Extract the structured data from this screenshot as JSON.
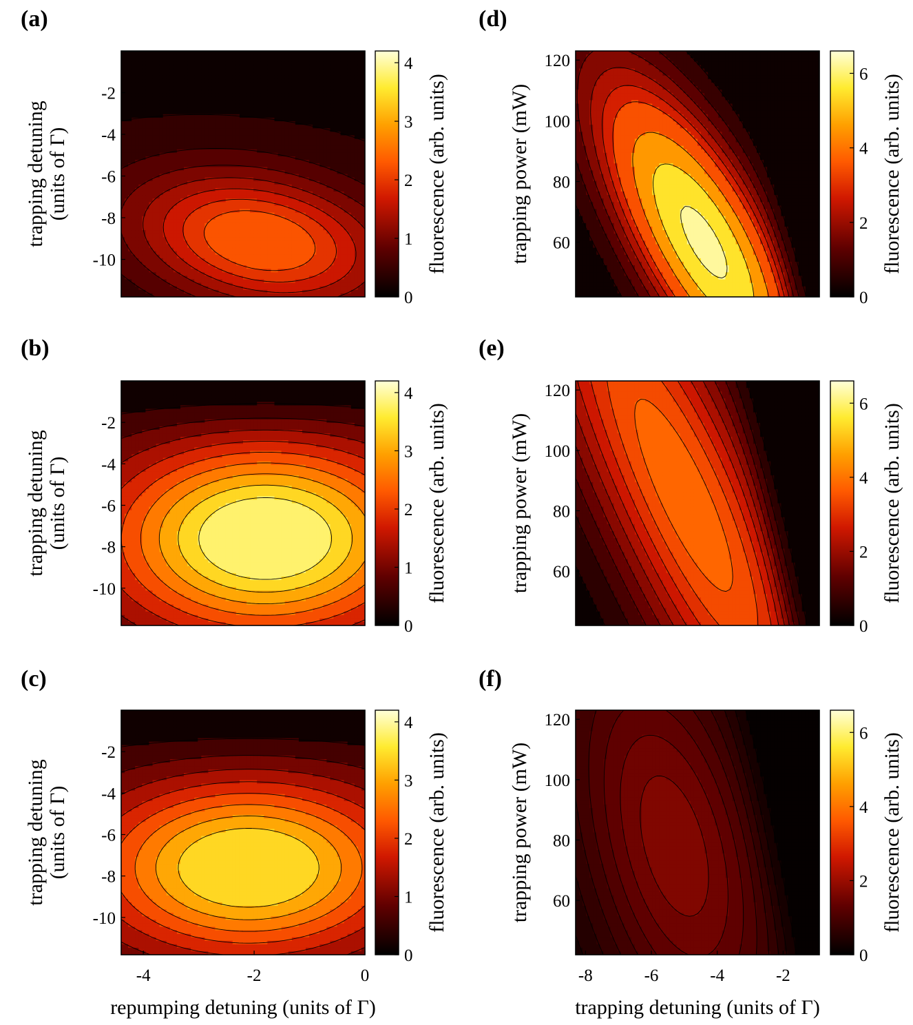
{
  "chart_data": [
    {
      "id": "a",
      "panel_label": "(a)",
      "type": "contour",
      "xlabel": "",
      "ylabel_lines": [
        "trapping detuning",
        "(units of Γ)"
      ],
      "xlim": [
        -4.4,
        0
      ],
      "ylim": [
        -11.8,
        0
      ],
      "xticks": [],
      "yticks": [
        {
          "v": -2,
          "t": "-2"
        },
        {
          "v": -4,
          "t": "-4"
        },
        {
          "v": -6,
          "t": "-6"
        },
        {
          "v": -8,
          "t": "-8"
        },
        {
          "v": -10,
          "t": "-10"
        }
      ],
      "clim": [
        0,
        4.2
      ],
      "levels": [
        0.3,
        0.6,
        0.9,
        1.2,
        1.5,
        1.8,
        2.1
      ],
      "peak": {
        "x": -1.9,
        "y": -9.1,
        "amp": 2.25,
        "sx": 1.55,
        "sy": 2.3,
        "tilt": 0.18
      },
      "base": 0.25,
      "colorbar": {
        "label": "fluorescence (arb. units)",
        "ticks": [
          {
            "v": 0,
            "t": "0"
          },
          {
            "v": 1,
            "t": "1"
          },
          {
            "v": 2,
            "t": "2"
          },
          {
            "v": 3,
            "t": "3"
          },
          {
            "v": 4,
            "t": "4"
          }
        ]
      }
    },
    {
      "id": "b",
      "panel_label": "(b)",
      "type": "contour",
      "xlabel": "",
      "ylabel_lines": [
        "trapping detuning",
        "(units of Γ)"
      ],
      "xlim": [
        -4.4,
        0
      ],
      "ylim": [
        -11.8,
        0
      ],
      "xticks": [],
      "yticks": [
        {
          "v": -2,
          "t": "-2"
        },
        {
          "v": -4,
          "t": "-4"
        },
        {
          "v": -6,
          "t": "-6"
        },
        {
          "v": -8,
          "t": "-8"
        },
        {
          "v": -10,
          "t": "-10"
        }
      ],
      "clim": [
        0,
        4.2
      ],
      "levels": [
        0.4,
        0.8,
        1.2,
        1.6,
        2.0,
        2.4,
        2.8,
        3.2,
        3.6
      ],
      "peak": {
        "x": -1.8,
        "y": -7.6,
        "amp": 3.95,
        "sx": 2.0,
        "sy": 3.3,
        "tilt": 0.0
      },
      "base": 0.3,
      "colorbar": {
        "label": "fluorescence (arb. units)",
        "ticks": [
          {
            "v": 0,
            "t": "0"
          },
          {
            "v": 1,
            "t": "1"
          },
          {
            "v": 2,
            "t": "2"
          },
          {
            "v": 3,
            "t": "3"
          },
          {
            "v": 4,
            "t": "4"
          }
        ]
      }
    },
    {
      "id": "c",
      "panel_label": "(c)",
      "type": "contour",
      "xlabel": "repumping detuning (units of Γ)",
      "ylabel_lines": [
        "trapping detuning",
        "(units of Γ)"
      ],
      "xlim": [
        -4.4,
        0
      ],
      "ylim": [
        -11.8,
        0
      ],
      "xticks": [
        {
          "v": -4,
          "t": "-4"
        },
        {
          "v": -2,
          "t": "-2"
        },
        {
          "v": 0,
          "t": "0"
        }
      ],
      "yticks": [
        {
          "v": -2,
          "t": "-2"
        },
        {
          "v": -4,
          "t": "-4"
        },
        {
          "v": -6,
          "t": "-6"
        },
        {
          "v": -8,
          "t": "-8"
        },
        {
          "v": -10,
          "t": "-10"
        }
      ],
      "clim": [
        0,
        4.2
      ],
      "levels": [
        0.4,
        0.8,
        1.2,
        1.6,
        2.0,
        2.4,
        2.8,
        3.2
      ],
      "peak": {
        "x": -2.1,
        "y": -7.6,
        "amp": 3.55,
        "sx": 2.0,
        "sy": 3.0,
        "tilt": 0.0
      },
      "base": 0.3,
      "colorbar": {
        "label": "fluorescence (arb. units)",
        "ticks": [
          {
            "v": 0,
            "t": "0"
          },
          {
            "v": 1,
            "t": "1"
          },
          {
            "v": 2,
            "t": "2"
          },
          {
            "v": 3,
            "t": "3"
          },
          {
            "v": 4,
            "t": "4"
          }
        ]
      }
    },
    {
      "id": "d",
      "panel_label": "(d)",
      "type": "contour",
      "xlabel": "",
      "ylabel_lines": [
        "trapping power (mW)"
      ],
      "xlim": [
        -8.3,
        -0.9
      ],
      "ylim": [
        42,
        123
      ],
      "xticks": [],
      "yticks": [
        {
          "v": 60,
          "t": "60"
        },
        {
          "v": 80,
          "t": "80"
        },
        {
          "v": 100,
          "t": "100"
        },
        {
          "v": 120,
          "t": "120"
        }
      ],
      "clim": [
        0,
        6.6
      ],
      "levels": [
        0.5,
        1.0,
        1.5,
        2.0,
        2.5,
        3.0,
        4.0,
        5.0,
        6.0
      ],
      "peak": {
        "x": -4.4,
        "y": 60,
        "amp": 6.3,
        "sx": 1.5,
        "sy": 38,
        "tilt": 0.045
      },
      "edge": -2.3,
      "base": 0.0,
      "colorbar": {
        "label": "fluorescence (arb. units)",
        "ticks": [
          {
            "v": 0,
            "t": "0"
          },
          {
            "v": 2,
            "t": "2"
          },
          {
            "v": 4,
            "t": "4"
          },
          {
            "v": 6,
            "t": "6"
          }
        ]
      }
    },
    {
      "id": "e",
      "panel_label": "(e)",
      "type": "contour",
      "xlabel": "",
      "ylabel_lines": [
        "trapping power (mW)"
      ],
      "xlim": [
        -8.3,
        -0.9
      ],
      "ylim": [
        42,
        123
      ],
      "xticks": [],
      "yticks": [
        {
          "v": 60,
          "t": "60"
        },
        {
          "v": 80,
          "t": "80"
        },
        {
          "v": 100,
          "t": "100"
        },
        {
          "v": 120,
          "t": "120"
        }
      ],
      "clim": [
        0,
        6.6
      ],
      "levels": [
        0.4,
        0.8,
        1.2,
        1.6,
        2.0,
        2.4,
        2.8,
        3.2,
        3.6
      ],
      "peak": {
        "x": -5.0,
        "y": 85,
        "amp": 3.9,
        "sx": 2.0,
        "sy": 80,
        "tilt": 0.04
      },
      "edge": -2.4,
      "base": 0.0,
      "colorbar": {
        "label": "fluorescence (arb. units)",
        "ticks": [
          {
            "v": 0,
            "t": "0"
          },
          {
            "v": 2,
            "t": "2"
          },
          {
            "v": 4,
            "t": "4"
          },
          {
            "v": 6,
            "t": "6"
          }
        ]
      }
    },
    {
      "id": "f",
      "panel_label": "(f)",
      "type": "contour",
      "xlabel": "trapping detuning (units of Γ)",
      "ylabel_lines": [
        "trapping power (mW)"
      ],
      "xlim": [
        -8.3,
        -0.9
      ],
      "ylim": [
        42,
        123
      ],
      "xticks": [
        {
          "v": -8,
          "t": "-8"
        },
        {
          "v": -6,
          "t": "-6"
        },
        {
          "v": -4,
          "t": "-4"
        },
        {
          "v": -2,
          "t": "-2"
        }
      ],
      "yticks": [
        {
          "v": 60,
          "t": "60"
        },
        {
          "v": 80,
          "t": "80"
        },
        {
          "v": 100,
          "t": "100"
        },
        {
          "v": 120,
          "t": "120"
        }
      ],
      "clim": [
        0,
        6.6
      ],
      "levels": [
        0.2,
        0.4,
        0.6,
        0.8,
        1.0,
        1.2,
        1.4,
        1.6
      ],
      "peak": {
        "x": -5.3,
        "y": 78,
        "amp": 1.75,
        "sx": 2.2,
        "sy": 55,
        "tilt": 0.02
      },
      "edge": -2.5,
      "base": 0.0,
      "colorbar": {
        "label": "fluorescence (arb. units)",
        "ticks": [
          {
            "v": 0,
            "t": "0"
          },
          {
            "v": 2,
            "t": "2"
          },
          {
            "v": 4,
            "t": "4"
          },
          {
            "v": 6,
            "t": "6"
          }
        ]
      }
    }
  ]
}
